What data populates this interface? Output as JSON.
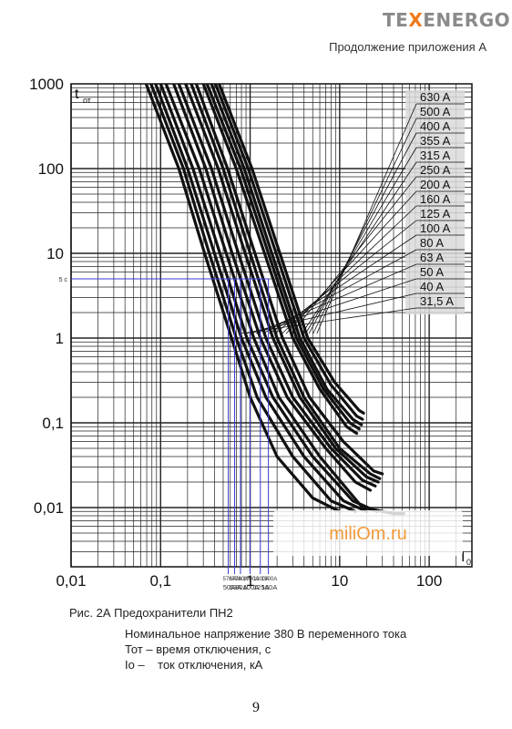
{
  "header": {
    "logo_prefix": "TE",
    "logo_accent": "X",
    "logo_suffix": "ENERGO",
    "subtitle": "Продолжение приложения А"
  },
  "caption": "Рис. 2А Предохранители ПН2",
  "notes": [
    "Номинальное напряжение 380 В переменного тока",
    "Тот – время отключения, с",
    "Io –    ток отключения, кА"
  ],
  "page_number": "9",
  "colors": {
    "accent": "#f07a1a",
    "logo_gray": "#8a8a8a",
    "marker": "#3a3ad6",
    "watermark_text": "#f29a3a"
  },
  "chart_data": {
    "type": "line",
    "x_scale": "log",
    "y_scale": "log",
    "xlim": [
      0.01,
      300
    ],
    "ylim": [
      0.002,
      1000
    ],
    "grid": true,
    "y_ticks": [
      {
        "v": 1000,
        "label": "1000"
      },
      {
        "v": 100,
        "label": "100"
      },
      {
        "v": 10,
        "label": "10"
      },
      {
        "v": 1,
        "label": "1"
      },
      {
        "v": 0.1,
        "label": "0,1"
      },
      {
        "v": 0.01,
        "label": "0,01"
      }
    ],
    "x_ticks": [
      {
        "v": 0.01,
        "label": "0,01"
      },
      {
        "v": 0.1,
        "label": "0,1"
      },
      {
        "v": 1,
        "label": "1"
      },
      {
        "v": 10,
        "label": "10"
      },
      {
        "v": 100,
        "label": "100"
      }
    ],
    "ylabel": "t",
    "ylabel_sub": "от",
    "xlabel": "I",
    "xlabel_sub": "0",
    "legend": [
      "630 A",
      "500 A",
      "400 A",
      "355 A",
      "315 A",
      "250 A",
      "200 A",
      "160 A",
      "125 A",
      "100 A",
      "80 A",
      "63 A",
      "50 A",
      "40 A",
      "31,5 A"
    ],
    "series": [
      {
        "name": "31,5 A",
        "points": [
          [
            0.069,
            1000
          ],
          [
            0.16,
            100
          ],
          [
            0.31,
            10
          ],
          [
            0.62,
            1
          ],
          [
            1.0,
            0.2
          ],
          [
            2.0,
            0.04
          ],
          [
            5.0,
            0.013
          ],
          [
            10.0,
            0.009
          ]
        ]
      },
      {
        "name": "40 A",
        "points": [
          [
            0.078,
            1000
          ],
          [
            0.18,
            100
          ],
          [
            0.35,
            10
          ],
          [
            0.7,
            1
          ],
          [
            1.2,
            0.2
          ],
          [
            3.0,
            0.04
          ],
          [
            8.0,
            0.012
          ],
          [
            15.0,
            0.009
          ]
        ]
      },
      {
        "name": "50 A",
        "points": [
          [
            0.088,
            1000
          ],
          [
            0.2,
            100
          ],
          [
            0.4,
            10
          ],
          [
            0.8,
            1
          ],
          [
            1.5,
            0.2
          ],
          [
            4.0,
            0.04
          ],
          [
            11.0,
            0.012
          ],
          [
            20.0,
            0.009
          ]
        ]
      },
      {
        "name": "63 A",
        "points": [
          [
            0.1,
            1000
          ],
          [
            0.23,
            100
          ],
          [
            0.46,
            10
          ],
          [
            0.92,
            1
          ],
          [
            1.8,
            0.2
          ],
          [
            5.0,
            0.04
          ],
          [
            14.0,
            0.012
          ],
          [
            26.0,
            0.009
          ]
        ]
      },
      {
        "name": "80 A",
        "points": [
          [
            0.115,
            1000
          ],
          [
            0.27,
            100
          ],
          [
            0.54,
            10
          ],
          [
            1.1,
            1
          ],
          [
            2.1,
            0.2
          ],
          [
            6.0,
            0.04
          ],
          [
            18.0,
            0.01
          ],
          [
            40.0,
            0.0085
          ],
          [
            52.0,
            0.0085
          ]
        ]
      },
      {
        "name": "100 A",
        "points": [
          [
            0.14,
            1000
          ],
          [
            0.32,
            100
          ],
          [
            0.63,
            10
          ],
          [
            1.3,
            1
          ],
          [
            2.6,
            0.2
          ],
          [
            7.0,
            0.05
          ],
          [
            15.0,
            0.02
          ],
          [
            22.0,
            0.016
          ]
        ]
      },
      {
        "name": "125 A",
        "points": [
          [
            0.16,
            1000
          ],
          [
            0.37,
            100
          ],
          [
            0.74,
            10
          ],
          [
            1.5,
            1
          ],
          [
            3.0,
            0.2
          ],
          [
            8.0,
            0.05
          ],
          [
            18.0,
            0.021
          ],
          [
            25.0,
            0.018
          ]
        ]
      },
      {
        "name": "160 A",
        "points": [
          [
            0.19,
            1000
          ],
          [
            0.44,
            100
          ],
          [
            0.88,
            10
          ],
          [
            1.8,
            1
          ],
          [
            3.6,
            0.2
          ],
          [
            9.0,
            0.05
          ],
          [
            20.0,
            0.023
          ],
          [
            27.0,
            0.02
          ]
        ]
      },
      {
        "name": "200 A",
        "points": [
          [
            0.22,
            1000
          ],
          [
            0.5,
            100
          ],
          [
            1.0,
            10
          ],
          [
            2.0,
            1
          ],
          [
            4.0,
            0.2
          ],
          [
            10.0,
            0.05
          ],
          [
            22.0,
            0.025
          ],
          [
            28.0,
            0.022
          ]
        ]
      },
      {
        "name": "250 A",
        "points": [
          [
            0.25,
            1000
          ],
          [
            0.56,
            100
          ],
          [
            1.13,
            10
          ],
          [
            2.3,
            1
          ],
          [
            4.6,
            0.2
          ],
          [
            11.0,
            0.06
          ],
          [
            24.0,
            0.027
          ],
          [
            30.0,
            0.025
          ]
        ]
      },
      {
        "name": "315 A",
        "points": [
          [
            0.3,
            1000
          ],
          [
            0.7,
            100
          ],
          [
            1.45,
            10
          ],
          [
            3.0,
            1
          ],
          [
            6.0,
            0.25
          ],
          [
            12.0,
            0.09
          ],
          [
            15.5,
            0.075
          ]
        ]
      },
      {
        "name": "355 A",
        "points": [
          [
            0.33,
            1000
          ],
          [
            0.78,
            100
          ],
          [
            1.6,
            10
          ],
          [
            3.3,
            1
          ],
          [
            6.6,
            0.25
          ],
          [
            13.0,
            0.1
          ],
          [
            16.5,
            0.085
          ]
        ]
      },
      {
        "name": "400 A",
        "points": [
          [
            0.37,
            1000
          ],
          [
            0.86,
            100
          ],
          [
            1.75,
            10
          ],
          [
            3.6,
            1
          ],
          [
            7.2,
            0.25
          ],
          [
            14.0,
            0.11
          ],
          [
            17.5,
            0.095
          ]
        ]
      },
      {
        "name": "500 A",
        "points": [
          [
            0.41,
            1000
          ],
          [
            0.95,
            100
          ],
          [
            1.95,
            10
          ],
          [
            4.0,
            1
          ],
          [
            8.0,
            0.28
          ],
          [
            15.5,
            0.12
          ],
          [
            18.0,
            0.11
          ]
        ]
      },
      {
        "name": "630 A",
        "points": [
          [
            0.45,
            1000
          ],
          [
            1.05,
            100
          ],
          [
            2.15,
            10
          ],
          [
            4.4,
            1
          ],
          [
            8.8,
            0.3
          ],
          [
            16.5,
            0.14
          ],
          [
            18.5,
            0.13
          ]
        ]
      }
    ],
    "marker_t": 5,
    "marker_t_label": "5 с",
    "markers": [
      {
        "x": 0.57,
        "top": "570A",
        "bottom": "50A"
      },
      {
        "x": 0.67,
        "top": "670A",
        "bottom": "63A"
      },
      {
        "x": 0.78,
        "top": "780A",
        "bottom": "80A"
      },
      {
        "x": 1.0,
        "top": "1000A",
        "bottom": "100A"
      },
      {
        "x": 1.3,
        "top": "1300A",
        "bottom": "125A"
      },
      {
        "x": 1.6,
        "top": "1600A",
        "bottom": "160A"
      }
    ],
    "watermark": "miliOm.ru"
  }
}
